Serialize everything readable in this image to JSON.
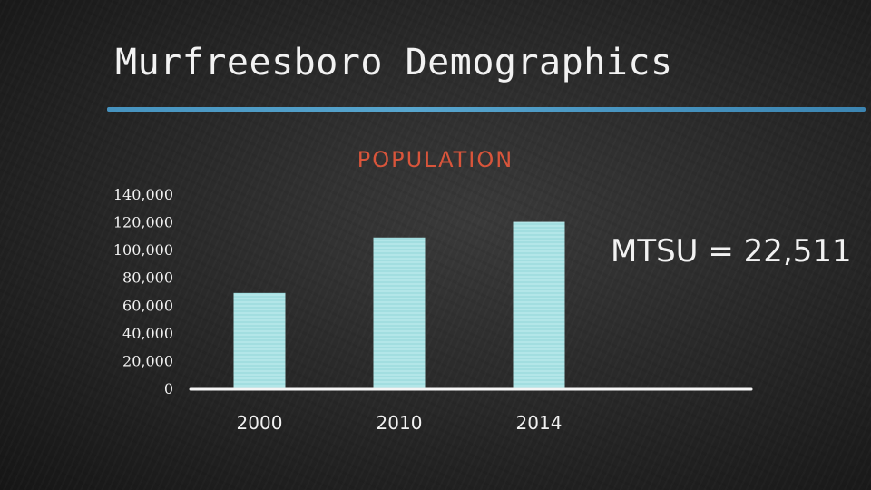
{
  "slide": {
    "title": "Murfreesboro Demographics"
  },
  "chart_data": {
    "type": "bar",
    "title": "POPULATION",
    "categories": [
      "2000",
      "2010",
      "2014"
    ],
    "values": [
      68800,
      108750,
      120000
    ],
    "ylim": [
      0,
      140000
    ],
    "yticks": [
      "0",
      "20,000",
      "40,000",
      "60,000",
      "80,000",
      "100,000",
      "120,000",
      "140,000"
    ],
    "grid": false,
    "bar_color": "#a8e2e4",
    "title_color": "#d9553b",
    "annotation": "MTSU = 22,511"
  },
  "colors": {
    "rule": "#4a9fd0",
    "text": "#f2f2f2"
  }
}
